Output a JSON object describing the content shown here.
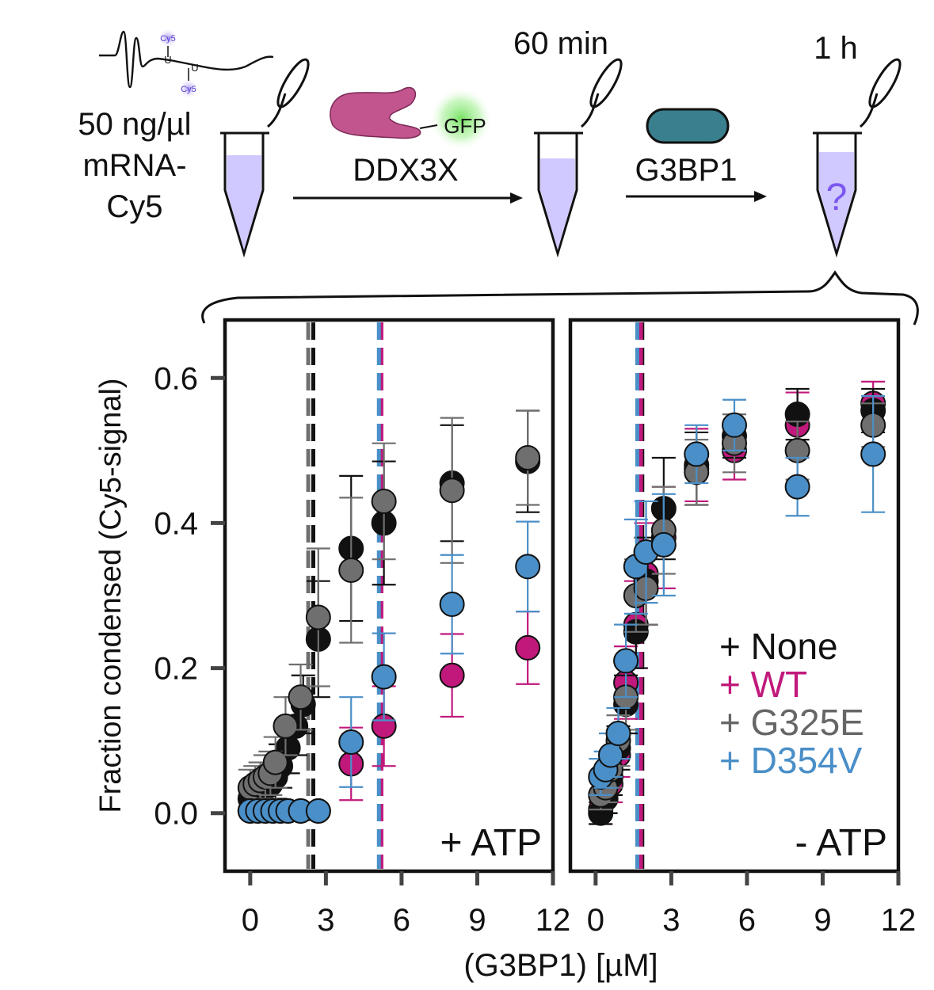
{
  "schematic": {
    "mrna_cy5_label_top": "Cy5",
    "mrna_cy5_label_bottom": "Cy5",
    "mrna_u_top": "U",
    "mrna_u_bottom": "U",
    "conc_line1": "50 ng/µl",
    "conc_line2": "mRNA-",
    "conc_line3": "Cy5",
    "time1": "60 min",
    "time2": "1 h",
    "gfp_label": "GFP",
    "ddx3x_label": "DDX3X",
    "g3bp1_label": "G3BP1",
    "question_mark": "?",
    "colors": {
      "tube_fill": "#cfc9ff",
      "ddx3x": "#c2548e",
      "gfp_glow": "#6fe05a",
      "g3bp1": "#3a7f8d",
      "question": "#7b56f0",
      "cy5_glow": "#b09bf0"
    },
    "icons": [
      "tube-icon",
      "mrna-icon",
      "ddx3x-gfp-icon",
      "g3bp1-protein-icon",
      "arrow-icon",
      "brace-icon"
    ]
  },
  "chart_data": {
    "type": "scatter",
    "xlabel": "(G3BP1) [µM]",
    "ylabel": "Fraction condensed (Cy5-signal)",
    "ylim": [
      -0.08,
      0.68
    ],
    "yticks": [
      0.0,
      0.2,
      0.4,
      0.6
    ],
    "ytick_labels": [
      "0.0",
      "0.2",
      "0.4",
      "0.6"
    ],
    "legend": {
      "placement": "bottom-right of right panel",
      "entries": [
        {
          "label": "+ None",
          "color": "#111111"
        },
        {
          "label": "+ WT",
          "color": "#c0197b"
        },
        {
          "label": "+ G325E",
          "color": "#666666"
        },
        {
          "label": "+ D354V",
          "color": "#4a8fc8"
        }
      ]
    },
    "series_colors": {
      "None": {
        "fill": "#111111",
        "bar": "#111111"
      },
      "WT": {
        "fill": "#c0197b",
        "bar": "#c0197b"
      },
      "G325E": {
        "fill": "#6f6f6f",
        "bar": "#6f6f6f"
      },
      "D354V": {
        "fill": "#4a8fc8",
        "bar": "#4a8fc8"
      }
    },
    "panels": [
      {
        "label": "+ ATP",
        "xlim": [
          -1,
          12
        ],
        "xticks": [
          0,
          3,
          6,
          9,
          12
        ],
        "xtick_labels": [
          "0",
          "3",
          "6",
          "9",
          "12"
        ],
        "vlines": [
          {
            "series": "None",
            "x": 2.5
          },
          {
            "series": "G325E",
            "x": 2.3
          },
          {
            "series": "WT",
            "x": 5.2
          },
          {
            "series": "D354V",
            "x": 5.1
          }
        ],
        "series": [
          {
            "name": "None",
            "points": [
              [
                0.0,
                0.02,
                0.02
              ],
              [
                0.2,
                0.025,
                0.02
              ],
              [
                0.4,
                0.03,
                0.02
              ],
              [
                0.6,
                0.035,
                0.02
              ],
              [
                0.8,
                0.04,
                0.025
              ],
              [
                1.0,
                0.05,
                0.03
              ],
              [
                1.2,
                0.065,
                0.03
              ],
              [
                1.5,
                0.09,
                0.035
              ],
              [
                1.8,
                0.12,
                0.04
              ],
              [
                2.1,
                0.15,
                0.04
              ],
              [
                2.7,
                0.24,
                0.08
              ],
              [
                4.0,
                0.365,
                0.1
              ],
              [
                5.3,
                0.4,
                0.085
              ],
              [
                8.0,
                0.455,
                0.08
              ],
              [
                11.0,
                0.485,
                0.07
              ]
            ]
          },
          {
            "name": "G325E",
            "points": [
              [
                0.0,
                0.035,
                0.025
              ],
              [
                0.2,
                0.04,
                0.025
              ],
              [
                0.4,
                0.045,
                0.025
              ],
              [
                0.6,
                0.05,
                0.03
              ],
              [
                0.8,
                0.055,
                0.03
              ],
              [
                1.0,
                0.07,
                0.035
              ],
              [
                1.4,
                0.12,
                0.04
              ],
              [
                2.0,
                0.16,
                0.045
              ],
              [
                2.7,
                0.27,
                0.095
              ],
              [
                4.0,
                0.335,
                0.1
              ],
              [
                5.3,
                0.43,
                0.08
              ],
              [
                8.0,
                0.445,
                0.1
              ],
              [
                11.0,
                0.49,
                0.065
              ]
            ]
          },
          {
            "name": "WT",
            "points": [
              [
                0.0,
                0.003,
                0.003
              ],
              [
                0.3,
                0.003,
                0.003
              ],
              [
                0.6,
                0.003,
                0.003
              ],
              [
                0.9,
                0.003,
                0.003
              ],
              [
                1.2,
                0.003,
                0.003
              ],
              [
                1.5,
                0.003,
                0.003
              ],
              [
                2.0,
                0.003,
                0.003
              ],
              [
                2.7,
                0.003,
                0.003
              ],
              [
                4.0,
                0.068,
                0.05
              ],
              [
                5.3,
                0.12,
                0.055
              ],
              [
                8.0,
                0.19,
                0.057
              ],
              [
                11.0,
                0.228,
                0.05
              ]
            ]
          },
          {
            "name": "D354V",
            "points": [
              [
                0.0,
                0.003,
                0.003
              ],
              [
                0.3,
                0.003,
                0.003
              ],
              [
                0.6,
                0.003,
                0.003
              ],
              [
                0.9,
                0.003,
                0.003
              ],
              [
                1.2,
                0.003,
                0.003
              ],
              [
                1.5,
                0.003,
                0.003
              ],
              [
                2.0,
                0.003,
                0.003
              ],
              [
                2.7,
                0.003,
                0.003
              ],
              [
                4.0,
                0.098,
                0.062
              ],
              [
                5.3,
                0.188,
                0.06
              ],
              [
                8.0,
                0.288,
                0.068
              ],
              [
                11.0,
                0.34,
                0.062
              ]
            ]
          }
        ]
      },
      {
        "label": "- ATP",
        "xlim": [
          -1,
          12
        ],
        "xticks": [
          0,
          3,
          6,
          9,
          12
        ],
        "xtick_labels": [
          "0",
          "3",
          "6",
          "9",
          "12"
        ],
        "vlines": [
          {
            "series": "None",
            "x": 1.85
          },
          {
            "series": "G325E",
            "x": 1.75
          },
          {
            "series": "WT",
            "x": 1.8
          },
          {
            "series": "D354V",
            "x": 1.65
          }
        ],
        "series": [
          {
            "name": "None",
            "points": [
              [
                0.2,
                0.0,
                0.015
              ],
              [
                0.4,
                0.02,
                0.02
              ],
              [
                0.6,
                0.05,
                0.025
              ],
              [
                0.9,
                0.09,
                0.03
              ],
              [
                1.2,
                0.15,
                0.04
              ],
              [
                1.6,
                0.25,
                0.05
              ],
              [
                2.0,
                0.32,
                0.06
              ],
              [
                2.7,
                0.42,
                0.07
              ],
              [
                4.0,
                0.475,
                0.05
              ],
              [
                5.5,
                0.52,
                0.03
              ],
              [
                8.0,
                0.55,
                0.035
              ],
              [
                11.0,
                0.555,
                0.03
              ]
            ]
          },
          {
            "name": "WT",
            "points": [
              [
                0.2,
                0.005,
                0.02
              ],
              [
                0.4,
                0.02,
                0.02
              ],
              [
                0.6,
                0.04,
                0.025
              ],
              [
                0.9,
                0.08,
                0.03
              ],
              [
                1.2,
                0.18,
                0.05
              ],
              [
                1.6,
                0.26,
                0.06
              ],
              [
                2.0,
                0.33,
                0.07
              ],
              [
                2.7,
                0.38,
                0.07
              ],
              [
                4.0,
                0.48,
                0.05
              ],
              [
                5.5,
                0.5,
                0.04
              ],
              [
                8.0,
                0.535,
                0.045
              ],
              [
                11.0,
                0.565,
                0.03
              ]
            ]
          },
          {
            "name": "G325E",
            "points": [
              [
                0.2,
                0.025,
                0.02
              ],
              [
                0.4,
                0.035,
                0.02
              ],
              [
                0.6,
                0.06,
                0.025
              ],
              [
                0.9,
                0.1,
                0.035
              ],
              [
                1.2,
                0.16,
                0.045
              ],
              [
                1.6,
                0.3,
                0.05
              ],
              [
                2.0,
                0.31,
                0.05
              ],
              [
                2.7,
                0.39,
                0.06
              ],
              [
                4.0,
                0.47,
                0.045
              ],
              [
                5.5,
                0.51,
                0.04
              ],
              [
                8.0,
                0.5,
                0.04
              ],
              [
                11.0,
                0.535,
                0.03
              ]
            ]
          },
          {
            "name": "D354V",
            "points": [
              [
                0.2,
                0.05,
                0.025
              ],
              [
                0.4,
                0.06,
                0.025
              ],
              [
                0.6,
                0.08,
                0.03
              ],
              [
                0.9,
                0.11,
                0.035
              ],
              [
                1.2,
                0.21,
                0.05
              ],
              [
                1.6,
                0.34,
                0.065
              ],
              [
                2.0,
                0.36,
                0.07
              ],
              [
                2.7,
                0.37,
                0.07
              ],
              [
                4.0,
                0.495,
                0.04
              ],
              [
                5.5,
                0.535,
                0.035
              ],
              [
                8.0,
                0.45,
                0.04
              ],
              [
                11.0,
                0.495,
                0.08
              ]
            ]
          }
        ]
      }
    ]
  }
}
